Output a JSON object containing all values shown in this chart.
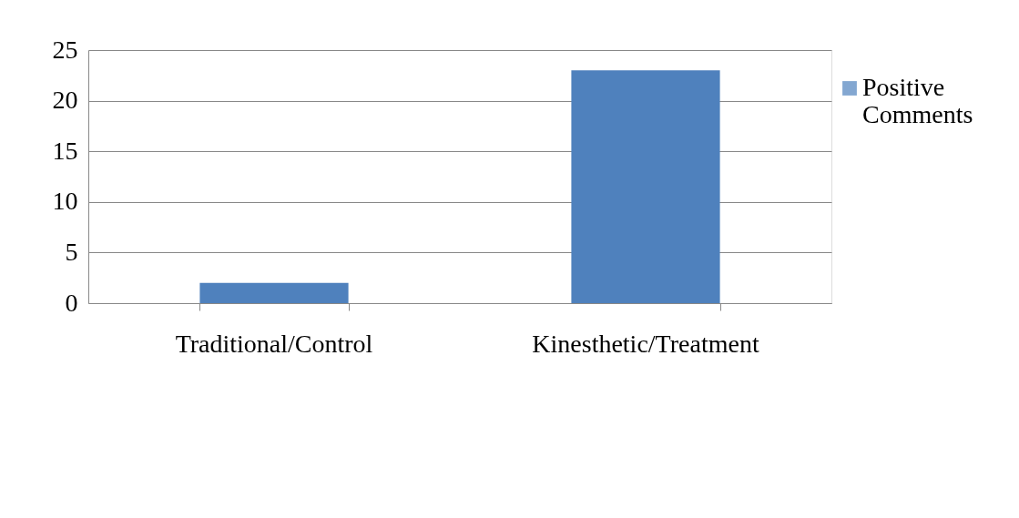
{
  "chart_data": {
    "type": "bar",
    "categories": [
      "Traditional/Control",
      "Kinesthetic/Treatment"
    ],
    "series": [
      {
        "name": "Positive Comments",
        "color": "#4f81bd",
        "values": [
          2,
          23
        ]
      }
    ],
    "ylim": [
      0,
      25
    ],
    "yticks": [
      0,
      5,
      10,
      15,
      20,
      25
    ],
    "grid": "y",
    "legend": "right"
  }
}
